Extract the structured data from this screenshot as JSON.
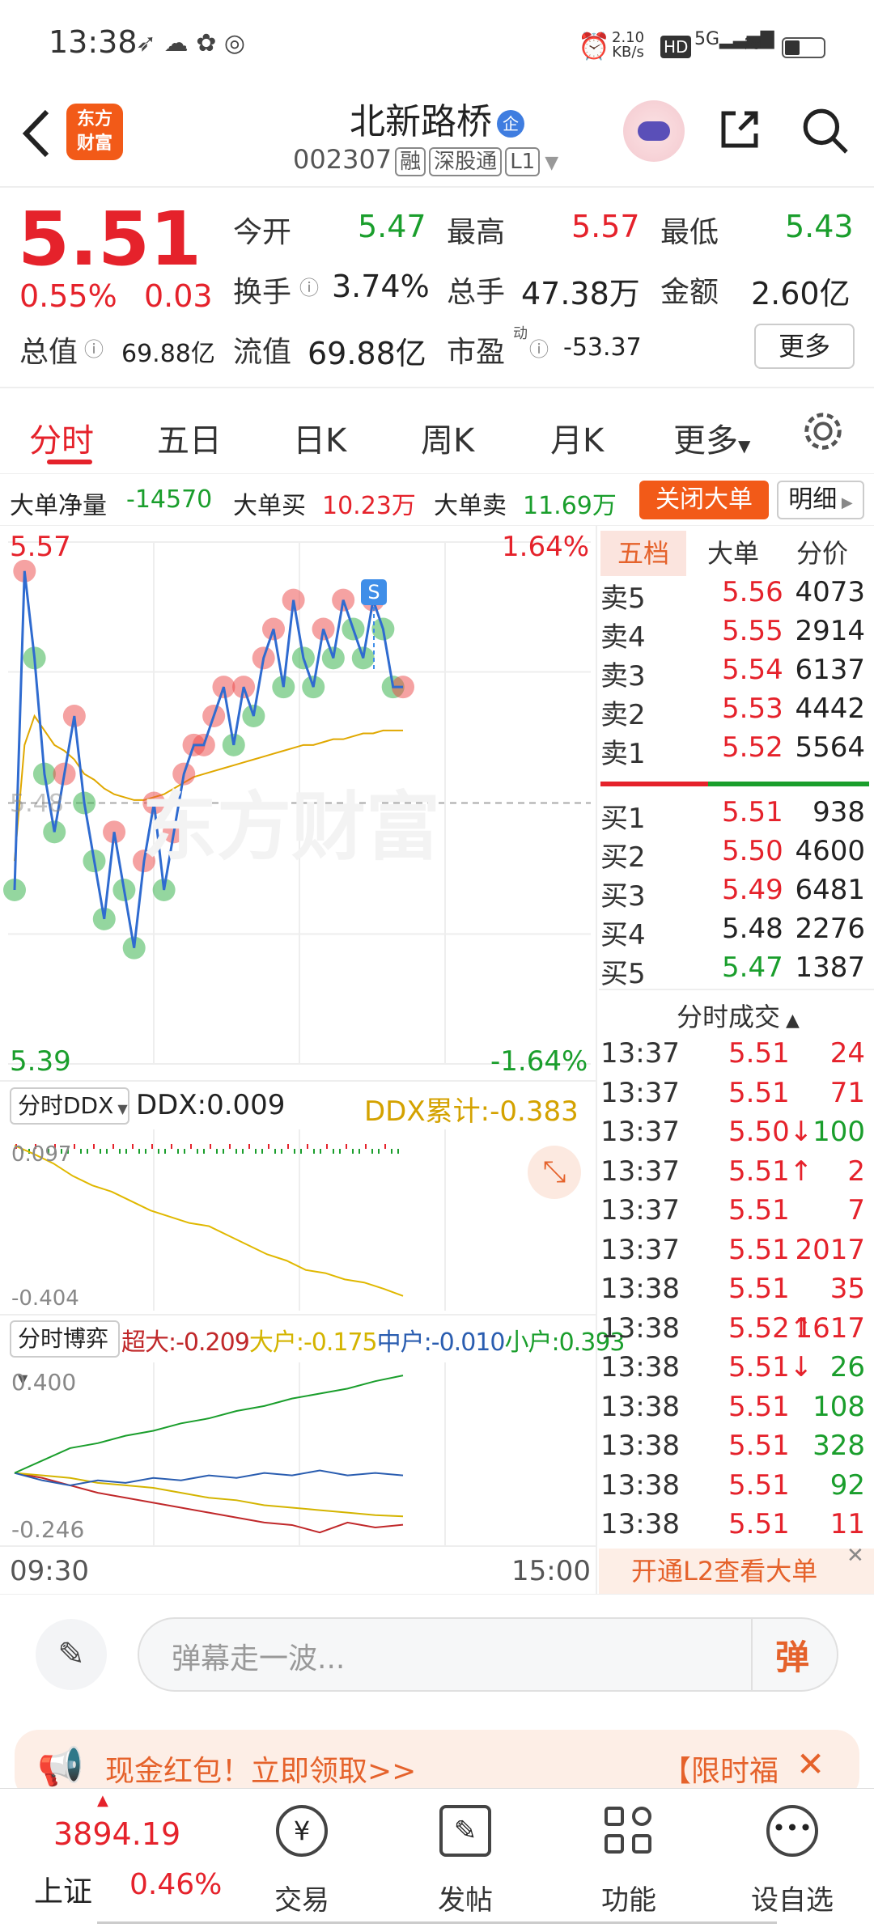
{
  "status": {
    "time": "13:38",
    "net_speed_top": "2.10",
    "net_speed_unit": "KB/s",
    "hd": "HD",
    "signal": "5G"
  },
  "header": {
    "title": "北新路桥",
    "badge": "企",
    "code": "002307",
    "tags": [
      "融",
      "深股通",
      "L1"
    ],
    "logo_line1": "东方",
    "logo_line2": "财富"
  },
  "quote": {
    "price": "5.51",
    "change_pct": "0.55%",
    "change": "0.03",
    "open_label": "今开",
    "open": "5.47",
    "high_label": "最高",
    "high": "5.57",
    "low_label": "最低",
    "low": "5.43",
    "turnover_label": "换手",
    "turnover": "3.74%",
    "volume_label": "总手",
    "volume": "47.38万",
    "amount_label": "金额",
    "amount": "2.60亿",
    "mktcap_label": "总值",
    "mktcap": "69.88亿",
    "float_label": "流值",
    "float": "69.88亿",
    "pe_label": "市盈",
    "pe_sup": "动",
    "pe": "-53.37",
    "more": "更多"
  },
  "tabs": [
    "分时",
    "五日",
    "日K",
    "周K",
    "月K",
    "更多"
  ],
  "bigorder": {
    "net_label": "大单净量",
    "net": "-14570",
    "buy_label": "大单买",
    "buy": "10.23万",
    "sell_label": "大单卖",
    "sell": "11.69万",
    "close_btn": "关闭大单",
    "detail_btn": "明细"
  },
  "chart_data": [
    {
      "type": "line",
      "title": "",
      "ylim": [
        5.39,
        5.57
      ],
      "y_top_label": "5.57",
      "y_bottom_label": "5.39",
      "pct_top": "1.64%",
      "pct_bottom": "-1.64%",
      "mid_label": "5.48",
      "x_start": "09:30",
      "x_end": "15:00",
      "watermark": "东方财富",
      "marker": "S",
      "series": [
        {
          "values": [
            5.45,
            5.56,
            5.53,
            5.49,
            5.47,
            5.49,
            5.51,
            5.48,
            5.46,
            5.44,
            5.47,
            5.45,
            5.43,
            5.46,
            5.48,
            5.45,
            5.47,
            5.49,
            5.5,
            5.5,
            5.51,
            5.52,
            5.5,
            5.52,
            5.51,
            5.53,
            5.54,
            5.52,
            5.55,
            5.53,
            5.52,
            5.54,
            5.53,
            5.55,
            5.54,
            5.53,
            5.55,
            5.54,
            5.52,
            5.52
          ]
        },
        {
          "values": [
            5.46,
            5.5,
            5.51,
            5.505,
            5.5,
            5.498,
            5.495,
            5.49,
            5.488,
            5.485,
            5.483,
            5.482,
            5.481,
            5.481,
            5.482,
            5.483,
            5.485,
            5.487,
            5.489,
            5.49,
            5.491,
            5.492,
            5.493,
            5.494,
            5.495,
            5.496,
            5.497,
            5.498,
            5.499,
            5.5,
            5.5,
            5.501,
            5.502,
            5.502,
            5.503,
            5.504,
            5.504,
            5.505,
            5.505,
            5.505
          ]
        }
      ]
    },
    {
      "type": "line",
      "title": "分时DDX",
      "label": "DDX:0.009",
      "cum_label": "DDX累计:-0.383",
      "y_top_label": "0.097",
      "y_bottom_label": "-0.404",
      "series": [
        {
          "values": [
            0.097,
            0.07,
            0.04,
            0.0,
            -0.03,
            -0.05,
            -0.08,
            -0.11,
            -0.13,
            -0.15,
            -0.16,
            -0.19,
            -0.22,
            -0.25,
            -0.27,
            -0.3,
            -0.31,
            -0.33,
            -0.34,
            -0.36,
            -0.383
          ]
        }
      ]
    },
    {
      "type": "line",
      "title": "分时博弈",
      "y_top_label": "0.400",
      "y_bottom_label": "-0.246",
      "series": [
        {
          "name": "超大",
          "value_label": "-0.209",
          "color": "#c0282a",
          "values": [
            0,
            -0.02,
            -0.05,
            -0.08,
            -0.1,
            -0.12,
            -0.14,
            -0.16,
            -0.18,
            -0.2,
            -0.21,
            -0.24,
            -0.2,
            -0.22,
            -0.209
          ]
        },
        {
          "name": "大户",
          "value_label": "-0.175",
          "color": "#d4b400",
          "values": [
            0,
            -0.01,
            -0.02,
            -0.04,
            -0.05,
            -0.06,
            -0.08,
            -0.1,
            -0.11,
            -0.13,
            -0.14,
            -0.15,
            -0.16,
            -0.17,
            -0.175
          ]
        },
        {
          "name": "中户",
          "value_label": "-0.010",
          "color": "#2a5db0",
          "values": [
            0,
            -0.03,
            -0.05,
            -0.03,
            -0.04,
            -0.02,
            -0.03,
            -0.01,
            -0.02,
            0,
            -0.01,
            0.01,
            -0.01,
            0,
            -0.01
          ]
        },
        {
          "name": "小户",
          "value_label": "0.393",
          "color": "#1a9e2c",
          "values": [
            0,
            0.05,
            0.1,
            0.12,
            0.15,
            0.17,
            0.2,
            0.22,
            0.25,
            0.27,
            0.3,
            0.32,
            0.34,
            0.37,
            0.393
          ]
        }
      ]
    }
  ],
  "orderbook": {
    "tabs": [
      "五档",
      "大单",
      "分价"
    ],
    "asks": [
      {
        "label": "卖5",
        "price": "5.56",
        "vol": "4073"
      },
      {
        "label": "卖4",
        "price": "5.55",
        "vol": "2914"
      },
      {
        "label": "卖3",
        "price": "5.54",
        "vol": "6137"
      },
      {
        "label": "卖2",
        "price": "5.53",
        "vol": "4442"
      },
      {
        "label": "卖1",
        "price": "5.52",
        "vol": "5564"
      }
    ],
    "bids": [
      {
        "label": "买1",
        "price": "5.51",
        "vol": "938"
      },
      {
        "label": "买2",
        "price": "5.50",
        "vol": "4600"
      },
      {
        "label": "买3",
        "price": "5.49",
        "vol": "6481"
      },
      {
        "label": "买4",
        "price": "5.48",
        "vol": "2276"
      },
      {
        "label": "买5",
        "price": "5.47",
        "vol": "1387"
      }
    ]
  },
  "trades": {
    "title": "分时成交",
    "rows": [
      {
        "t": "13:37",
        "p": "5.51",
        "v": "24",
        "a": ""
      },
      {
        "t": "13:37",
        "p": "5.51",
        "v": "71",
        "a": ""
      },
      {
        "t": "13:37",
        "p": "5.50↓",
        "v": "100",
        "a": "g"
      },
      {
        "t": "13:37",
        "p": "5.51↑",
        "v": "2",
        "a": "r"
      },
      {
        "t": "13:37",
        "p": "5.51",
        "v": "7",
        "a": ""
      },
      {
        "t": "13:37",
        "p": "5.51",
        "v": "2017",
        "a": ""
      },
      {
        "t": "13:38",
        "p": "5.51",
        "v": "35",
        "a": ""
      },
      {
        "t": "13:38",
        "p": "5.52↑",
        "v": "1617",
        "a": "r"
      },
      {
        "t": "13:38",
        "p": "5.51↓",
        "v": "26",
        "a": "g"
      },
      {
        "t": "13:38",
        "p": "5.51",
        "v": "108",
        "a": "g"
      },
      {
        "t": "13:38",
        "p": "5.51",
        "v": "328",
        "a": "g"
      },
      {
        "t": "13:38",
        "p": "5.51",
        "v": "92",
        "a": "g"
      },
      {
        "t": "13:38",
        "p": "5.51",
        "v": "11",
        "a": "r"
      }
    ],
    "l2_banner": "开通L2查看大单"
  },
  "comment": {
    "placeholder": "弹幕走一波...",
    "send": "弹"
  },
  "promo": {
    "left": "现金红包！立即领取>>",
    "right": "【限时福"
  },
  "nav": {
    "index_value": "3894.19",
    "index_name": "上证",
    "index_pct": "0.46%",
    "items": [
      "交易",
      "发帖",
      "功能",
      "设自选"
    ]
  }
}
